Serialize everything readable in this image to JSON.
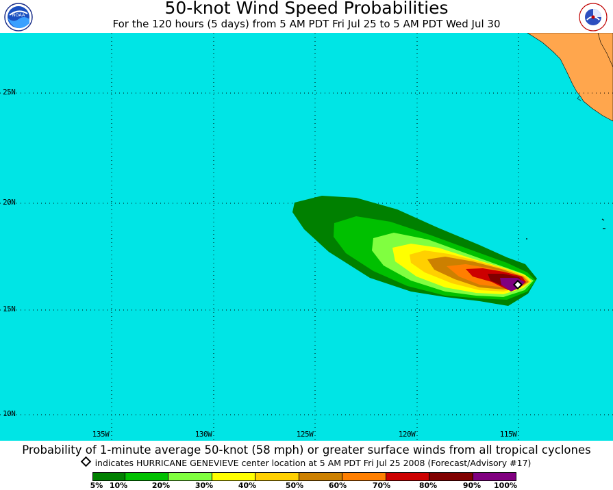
{
  "header": {
    "title": "50-knot Wind Speed Probabilities",
    "subtitle": "For the 120 hours (5 days) from 5 AM PDT Fri Jul 25 to 5 AM PDT Wed Jul 30",
    "left_logo_text": "NOAA",
    "right_logo_text": "NATIONAL WEATHER SERVICE"
  },
  "map": {
    "ocean_color": "#00E5E5",
    "land_color": "#FFA64D",
    "lat_labels": [
      "25N",
      "20N",
      "15N",
      "10N"
    ],
    "lon_labels": [
      "135W",
      "130W",
      "125W",
      "120W",
      "115W"
    ],
    "storm_marker": "storm-center-diamond"
  },
  "footer": {
    "caption": "Probability of 1-minute average 50-knot (58 mph) or greater surface winds from all tropical cyclones",
    "marker_note": "indicates HURRICANE GENEVIEVE center location at 5 AM PDT Fri Jul 25 2008 (Forecast/Advisory #17)"
  },
  "legend": {
    "colors": [
      "#008000",
      "#00C000",
      "#80FF40",
      "#FFFF00",
      "#FFD000",
      "#CC8000",
      "#FF7F00",
      "#CC0000",
      "#800000",
      "#800080"
    ],
    "labels": [
      "5%",
      "10%",
      "20%",
      "30%",
      "40%",
      "50%",
      "60%",
      "70%",
      "80%",
      "90%",
      "100%"
    ]
  }
}
